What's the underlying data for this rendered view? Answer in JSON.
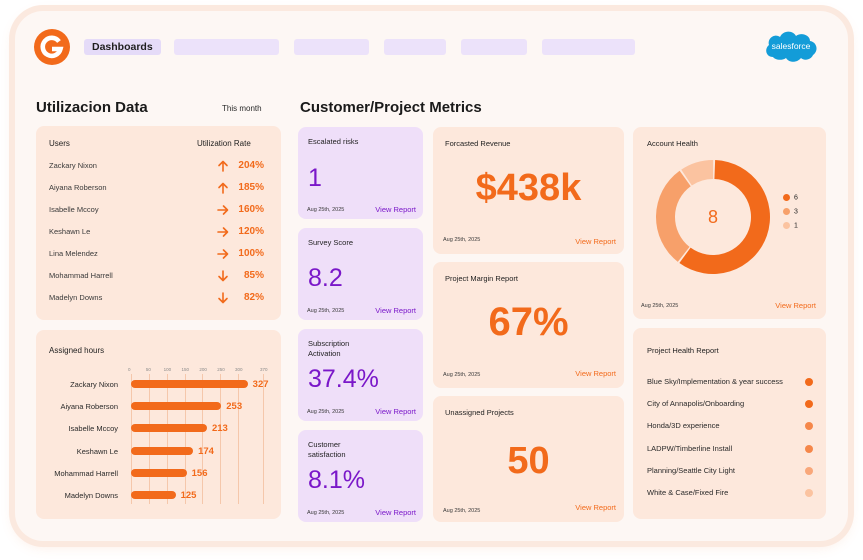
{
  "header": {
    "active_tab": "Dashboards",
    "brand_logo": "G-icon",
    "partner_logo": "salesforce",
    "colors": {
      "accent": "#f26a1b",
      "purple": "#7a17c9",
      "card_orange": "#fde8dc",
      "card_purple": "#efdff9"
    }
  },
  "utilization": {
    "title": "Utilizacion Data",
    "period": "This month",
    "col_users": "Users",
    "col_rate": "Utilization Rate",
    "rows": [
      {
        "name": "Zackary Nixon",
        "value": "204%",
        "trend": "up"
      },
      {
        "name": "Aiyana Roberson",
        "value": "185%",
        "trend": "up"
      },
      {
        "name": "Isabelle Mccoy",
        "value": "160%",
        "trend": "right"
      },
      {
        "name": "Keshawn Le",
        "value": "120%",
        "trend": "right"
      },
      {
        "name": "Lina Melendez",
        "value": "100%",
        "trend": "right"
      },
      {
        "name": "Mohammad Harrell",
        "value": "85%",
        "trend": "down"
      },
      {
        "name": "Madelyn Downs",
        "value": "82%",
        "trend": "down"
      }
    ]
  },
  "assigned_hours": {
    "title": "Assigned hours",
    "ticks": [
      "0",
      "50",
      "100",
      "150",
      "200",
      "250",
      "300",
      "370"
    ],
    "max": 370,
    "rows": [
      {
        "name": "Zackary Nixon",
        "value": 327
      },
      {
        "name": "Aiyana Roberson",
        "value": 253
      },
      {
        "name": "Isabelle Mccoy",
        "value": 213
      },
      {
        "name": "Keshawn Le",
        "value": 174
      },
      {
        "name": "Mohammad Harrell",
        "value": 156
      },
      {
        "name": "Madelyn Downs",
        "value": 125
      }
    ]
  },
  "metrics": {
    "title": "Customer/Project Metrics",
    "kpis": [
      {
        "title": "Escalated risks",
        "value": "1",
        "date": "Aug 25th, 2025",
        "link": "View Report"
      },
      {
        "title": "Survey Score",
        "value": "8.2",
        "date": "Aug 25th, 2025",
        "link": "View Report"
      },
      {
        "title": "Subscription Activation",
        "value": "37.4%",
        "date": "Aug 25th, 2025",
        "link": "View Report"
      },
      {
        "title": "Customer satisfaction",
        "value": "8.1%",
        "date": "Aug 25th, 2025",
        "link": "View Report"
      }
    ],
    "forecasted": {
      "title": "Forcasted Revenue",
      "value": "$438k",
      "date": "Aug 25th, 2025",
      "link": "View Report"
    },
    "margin": {
      "title": "Project Margin Report",
      "value": "67%",
      "date": "Aug 25th, 2025",
      "link": "View Report"
    },
    "unassigned": {
      "title": "Unassigned Projects",
      "value": "50",
      "date": "Aug 25th, 2025",
      "link": "View Report"
    }
  },
  "account_health": {
    "title": "Account Health",
    "center": "8",
    "date": "Aug 25th, 2025",
    "link": "View Report",
    "segments": [
      {
        "label": "6",
        "value": 6,
        "color": "#f26a1b"
      },
      {
        "label": "3",
        "value": 3,
        "color": "#f7a06a"
      },
      {
        "label": "1",
        "value": 1,
        "color": "#fbc3a0"
      }
    ]
  },
  "project_health": {
    "title": "Project Health Report",
    "rows": [
      {
        "name": "Blue Sky/Implementation & year success",
        "color": "#f26a1b"
      },
      {
        "name": "City of Annapolis/Onboarding",
        "color": "#f26a1b"
      },
      {
        "name": "Honda/3D experience",
        "color": "#f5874a"
      },
      {
        "name": "LADPW/Timberline Install",
        "color": "#f5874a"
      },
      {
        "name": "Planning/Seattle City Light",
        "color": "#f9a77a"
      },
      {
        "name": "White & Case/Fixed Fire",
        "color": "#fbc3a0"
      }
    ]
  }
}
